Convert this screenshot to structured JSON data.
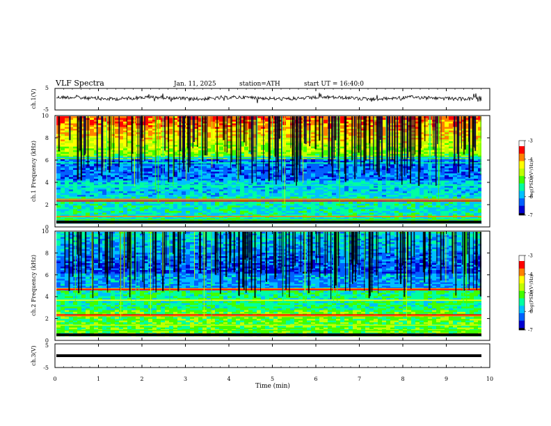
{
  "header": {
    "title": "VLF Spectra",
    "date": "Jan. 11, 2025",
    "station": "station=ATH",
    "start": "start UT = 16:40:0"
  },
  "chart_data": [
    {
      "type": "line",
      "panel": "ch1-waveform",
      "ylabel": "ch.1(V)",
      "ylim": [
        -5,
        5
      ],
      "yticks": [
        "5",
        "-5"
      ],
      "xlim": [
        0,
        10
      ],
      "baseline": 0,
      "note_values": "noisy trace near 0 V spanning full time range"
    },
    {
      "type": "heatmap",
      "panel": "ch1-spectrogram",
      "ylabel": "ch.1 Frequency (kHz)",
      "ylim": [
        0,
        10
      ],
      "yticks": [
        "0",
        "2",
        "4",
        "6",
        "8",
        "10"
      ],
      "xlim": [
        0,
        10
      ],
      "colorbar": {
        "label": "log(PSD)(V²/Hz)",
        "range": [
          -7,
          -3
        ],
        "ticks": [
          "-3",
          "-4",
          "-5",
          "-6",
          "-7"
        ]
      }
    },
    {
      "type": "heatmap",
      "panel": "ch2-spectrogram",
      "ylabel": "ch.2 Frequency (kHz)",
      "ylim": [
        0,
        10
      ],
      "yticks": [
        "0",
        "2",
        "4",
        "6",
        "8",
        "10"
      ],
      "xlim": [
        0,
        10
      ],
      "colorbar": {
        "label": "log(PSD)(V²/Hz)",
        "range": [
          -7,
          -3
        ],
        "ticks": [
          "-3",
          "-4",
          "-5",
          "-6",
          "-7"
        ]
      }
    },
    {
      "type": "line",
      "panel": "ch3-waveform",
      "ylabel": "ch.3(V)",
      "ylim": [
        -5,
        5
      ],
      "yticks": [
        "5",
        "-5"
      ],
      "xlim": [
        0,
        10
      ],
      "baseline": -2
    }
  ],
  "xaxis": {
    "label": "Time (min)",
    "ticks": [
      "0",
      "1",
      "2",
      "3",
      "4",
      "5",
      "6",
      "7",
      "8",
      "9",
      "10"
    ]
  },
  "colors": {
    "colormap": [
      "#000000",
      "#0000d0",
      "#0060ff",
      "#00c0ff",
      "#00ffa0",
      "#40ff00",
      "#c0ff00",
      "#ffff00",
      "#ff8000",
      "#ff0000",
      "#ffffff"
    ]
  }
}
